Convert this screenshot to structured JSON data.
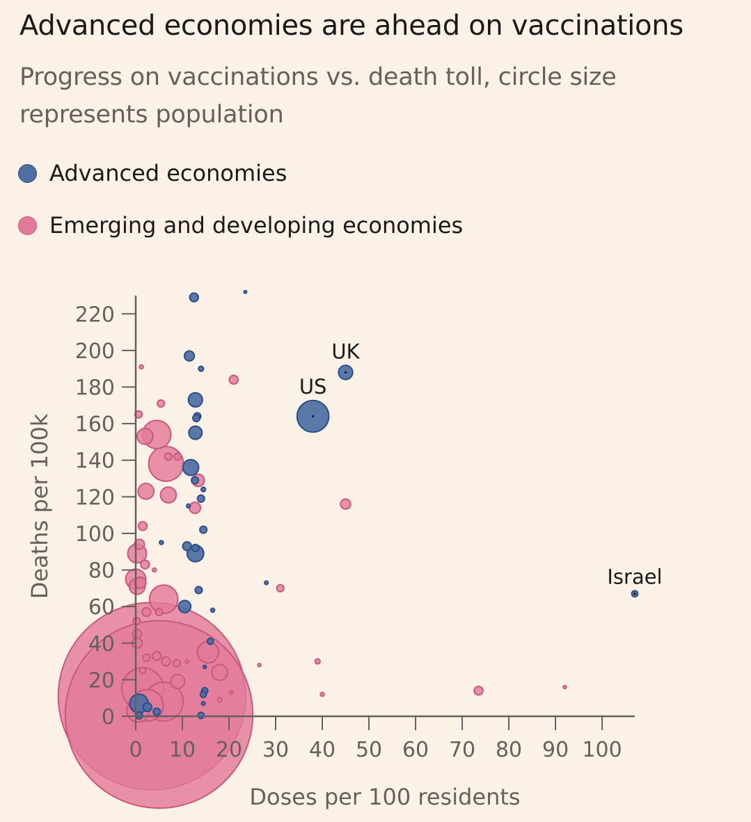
{
  "title": "Advanced economies are ahead on vaccinations",
  "subtitle": "Progress on vaccinations vs. death toll, circle size represents population",
  "legend": [
    {
      "label": "Advanced economies",
      "color": "#4e6fa3",
      "stroke": "#2c4f85"
    },
    {
      "label": "Emerging and developing economies",
      "color": "#e27a9a",
      "stroke": "#c9587f"
    }
  ],
  "chart_data": {
    "type": "scatter",
    "xlabel": "Doses per 100 residents",
    "ylabel": "Deaths per 100k",
    "xlim": [
      0,
      107
    ],
    "ylim": [
      0,
      230
    ],
    "xticks": [
      0,
      10,
      20,
      30,
      40,
      50,
      60,
      70,
      80,
      90,
      100
    ],
    "yticks": [
      0,
      20,
      40,
      60,
      80,
      100,
      120,
      140,
      160,
      180,
      200,
      220
    ],
    "series": [
      {
        "name": "Advanced economies",
        "points": [
          {
            "x": 12.5,
            "y": 229,
            "size": 3
          },
          {
            "x": 11.5,
            "y": 197,
            "size": 4
          },
          {
            "x": 14,
            "y": 190,
            "size": 1
          },
          {
            "x": 45,
            "y": 188,
            "size": 8,
            "label": "UK"
          },
          {
            "x": 12.8,
            "y": 173,
            "size": 8
          },
          {
            "x": 38,
            "y": 164,
            "size": 40,
            "label": "US"
          },
          {
            "x": 13.2,
            "y": 164,
            "size": 2
          },
          {
            "x": 13,
            "y": 163,
            "size": 2
          },
          {
            "x": 12.8,
            "y": 155,
            "size": 7
          },
          {
            "x": 11.8,
            "y": 136,
            "size": 10
          },
          {
            "x": 12.7,
            "y": 129,
            "size": 2
          },
          {
            "x": 14.5,
            "y": 124,
            "size": 0.8
          },
          {
            "x": 14,
            "y": 119,
            "size": 2
          },
          {
            "x": 11.3,
            "y": 115,
            "size": 0.6
          },
          {
            "x": 14.5,
            "y": 102,
            "size": 2
          },
          {
            "x": 5.5,
            "y": 95,
            "size": 0.6
          },
          {
            "x": 11,
            "y": 93,
            "size": 3
          },
          {
            "x": 12.8,
            "y": 92,
            "size": 2
          },
          {
            "x": 12.8,
            "y": 89,
            "size": 11
          },
          {
            "x": 28,
            "y": 73,
            "size": 0.5
          },
          {
            "x": 107,
            "y": 67,
            "size": 1.5,
            "label": "Israel"
          },
          {
            "x": 13.5,
            "y": 69,
            "size": 2
          },
          {
            "x": 10.5,
            "y": 60,
            "size": 6
          },
          {
            "x": 16.5,
            "y": 58,
            "size": 0.6
          },
          {
            "x": 16,
            "y": 41,
            "size": 1.5
          },
          {
            "x": 14.8,
            "y": 27,
            "size": 0.4
          },
          {
            "x": 14.8,
            "y": 14,
            "size": 1.5
          },
          {
            "x": 14.5,
            "y": 12,
            "size": 1.5
          },
          {
            "x": 14.5,
            "y": 7,
            "size": 0.5
          },
          {
            "x": 14,
            "y": 0.5,
            "size": 1.5
          },
          {
            "x": 0.7,
            "y": 7,
            "size": 14
          },
          {
            "x": 2.5,
            "y": 5,
            "size": 3
          },
          {
            "x": 0.7,
            "y": 0.5,
            "size": 2
          },
          {
            "x": 4.5,
            "y": 2.5,
            "size": 2
          },
          {
            "x": 23.5,
            "y": 232,
            "size": 0.3
          }
        ]
      },
      {
        "name": "Emerging and developing economies",
        "points": [
          {
            "x": 1.2,
            "y": 191,
            "size": 0.6
          },
          {
            "x": 21,
            "y": 184,
            "size": 3
          },
          {
            "x": 5.4,
            "y": 171,
            "size": 2
          },
          {
            "x": 0.6,
            "y": 165,
            "size": 2
          },
          {
            "x": 4.5,
            "y": 154,
            "size": 32
          },
          {
            "x": 2,
            "y": 153,
            "size": 10
          },
          {
            "x": 6.5,
            "y": 138,
            "size": 48
          },
          {
            "x": 7,
            "y": 142,
            "size": 2
          },
          {
            "x": 9,
            "y": 142,
            "size": 2
          },
          {
            "x": 13.4,
            "y": 129,
            "size": 6
          },
          {
            "x": 2.2,
            "y": 123,
            "size": 10
          },
          {
            "x": 7,
            "y": 121,
            "size": 10
          },
          {
            "x": 12.7,
            "y": 114,
            "size": 5
          },
          {
            "x": 45,
            "y": 116,
            "size": 4
          },
          {
            "x": 1.5,
            "y": 104,
            "size": 3
          },
          {
            "x": 0.8,
            "y": 94,
            "size": 4
          },
          {
            "x": 0.3,
            "y": 89,
            "size": 14
          },
          {
            "x": 2,
            "y": 83,
            "size": 3
          },
          {
            "x": 4,
            "y": 80,
            "size": 0.6
          },
          {
            "x": 0,
            "y": 75,
            "size": 16
          },
          {
            "x": 1,
            "y": 73,
            "size": 5
          },
          {
            "x": 0.3,
            "y": 71,
            "size": 10
          },
          {
            "x": 31,
            "y": 70,
            "size": 2
          },
          {
            "x": 6,
            "y": 64,
            "size": 32
          },
          {
            "x": 2.3,
            "y": 57,
            "size": 3
          },
          {
            "x": 5,
            "y": 57,
            "size": 2
          },
          {
            "x": 0.2,
            "y": 52,
            "size": 2
          },
          {
            "x": 0.3,
            "y": 45,
            "size": 3
          },
          {
            "x": 0.3,
            "y": 40,
            "size": 4
          },
          {
            "x": 15.5,
            "y": 35,
            "size": 18
          },
          {
            "x": 4.5,
            "y": 33,
            "size": 3
          },
          {
            "x": 2.3,
            "y": 32,
            "size": 2
          },
          {
            "x": 6.5,
            "y": 30,
            "size": 3
          },
          {
            "x": 8.8,
            "y": 29,
            "size": 2
          },
          {
            "x": 11,
            "y": 30,
            "size": 0.5
          },
          {
            "x": 1.5,
            "y": 25,
            "size": 1.5
          },
          {
            "x": 26.5,
            "y": 28,
            "size": 0.4
          },
          {
            "x": 39,
            "y": 30,
            "size": 1
          },
          {
            "x": 18,
            "y": 24,
            "size": 10
          },
          {
            "x": 9,
            "y": 19,
            "size": 8
          },
          {
            "x": 3.5,
            "y": 11,
            "size": 1400
          },
          {
            "x": 5,
            "y": 1,
            "size": 1400
          },
          {
            "x": 1.5,
            "y": 15,
            "size": 70
          },
          {
            "x": 2.5,
            "y": 6,
            "size": 40
          },
          {
            "x": 6,
            "y": 8,
            "size": 60
          },
          {
            "x": 0.5,
            "y": 3,
            "size": 20
          },
          {
            "x": 73.5,
            "y": 14,
            "size": 3
          },
          {
            "x": 92,
            "y": 16,
            "size": 0.4
          },
          {
            "x": 40,
            "y": 12,
            "size": 0.6
          },
          {
            "x": 20.5,
            "y": 13,
            "size": 0.4
          },
          {
            "x": 18,
            "y": 9,
            "size": 0.8
          }
        ]
      }
    ]
  }
}
